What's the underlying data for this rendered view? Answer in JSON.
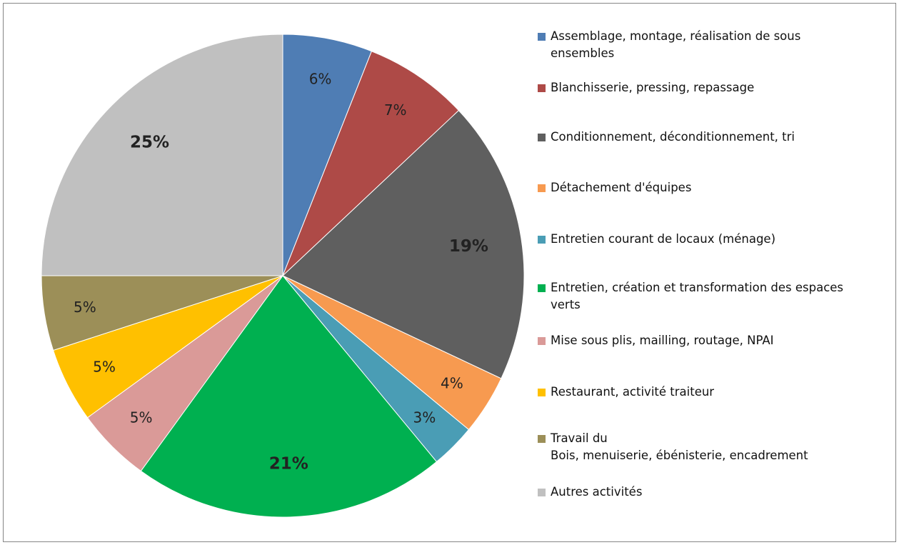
{
  "chart_data": {
    "type": "pie",
    "title": "",
    "slices": [
      {
        "name": "Assemblage, montage, réalisation de sous ensembles",
        "value": 6,
        "label": "6%",
        "color": "#4F7DB4",
        "label_bold": false
      },
      {
        "name": "Blanchisserie, pressing, repassage",
        "value": 7,
        "label": "7%",
        "color": "#AE4A47",
        "label_bold": false
      },
      {
        "name": "Conditionnement, déconditionnement, tri",
        "value": 19,
        "label": "19%",
        "color": "#5F5F5F",
        "label_bold": true
      },
      {
        "name": "Détachement d'équipes",
        "value": 4,
        "label": "4%",
        "color": "#F79A50",
        "label_bold": false
      },
      {
        "name": "Entretien courant de locaux (ménage)",
        "value": 3,
        "label": "3%",
        "color": "#4A9DB5",
        "label_bold": false
      },
      {
        "name": "Entretien, création et transformation des espaces verts",
        "value": 21,
        "label": "21%",
        "color": "#00B050",
        "label_bold": true
      },
      {
        "name": "Mise sous plis, mailling, routage, NPAI",
        "value": 5,
        "label": "5%",
        "color": "#DA9A98",
        "label_bold": false
      },
      {
        "name": "Restaurant, activité traiteur",
        "value": 5,
        "label": "5%",
        "color": "#FFC000",
        "label_bold": false
      },
      {
        "name": "Travail du Bois, menuiserie, ébénisterie, encadrement",
        "value": 5,
        "label": "5%",
        "color": "#9C8F58",
        "label_bold": false
      },
      {
        "name": "Autres activités",
        "value": 25,
        "label": "25%",
        "color": "#C0C0C0",
        "label_bold": true
      }
    ],
    "legend_position": "right"
  },
  "legend": [
    {
      "lines": [
        "Assemblage, montage, réalisation de sous",
        "ensembles"
      ]
    },
    {
      "lines": [
        "Blanchisserie, pressing, repassage"
      ]
    },
    {
      "lines": [
        "Conditionnement, déconditionnement, tri"
      ]
    },
    {
      "lines": [
        "Détachement d'équipes"
      ]
    },
    {
      "lines": [
        "Entretien courant de locaux (ménage)"
      ]
    },
    {
      "lines": [
        "Entretien, création et transformation des espaces",
        "verts"
      ]
    },
    {
      "lines": [
        "Mise sous plis, mailling, routage, NPAI"
      ]
    },
    {
      "lines": [
        "Restaurant, activité traiteur"
      ]
    },
    {
      "lines": [
        "Travail du",
        "Bois, menuiserie, ébénisterie, encadrement"
      ]
    },
    {
      "lines": [
        "Autres activités"
      ]
    }
  ]
}
